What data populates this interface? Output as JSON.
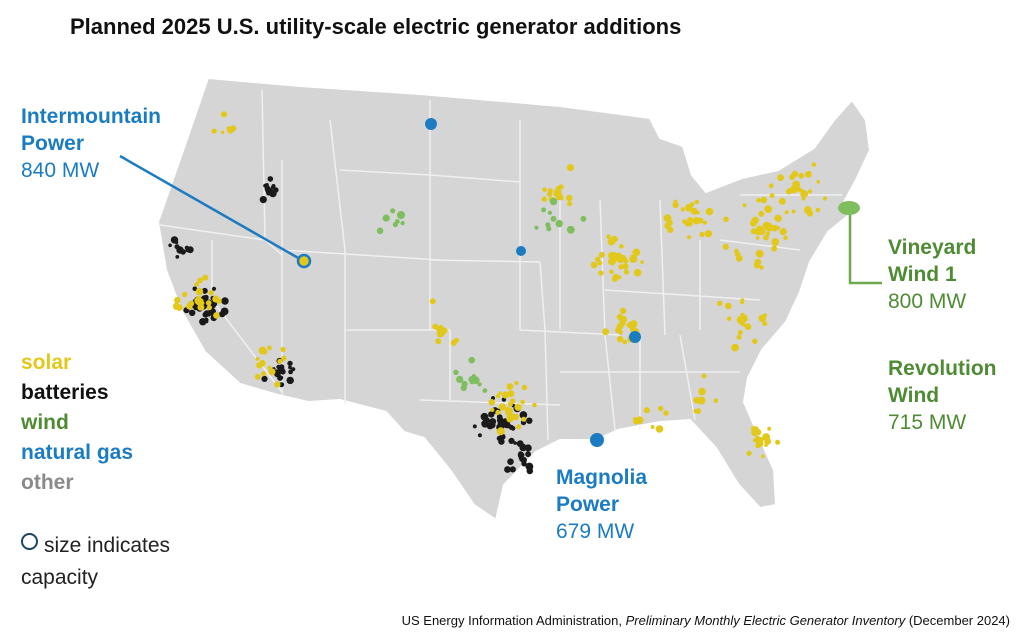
{
  "title": "Planned 2025 U.S. utility-scale electric generator additions",
  "colors": {
    "solar": "#e3c81c",
    "batteries": "#1a1a1a",
    "wind": "#7ebe5e",
    "natural_gas": "#1c7cc1",
    "other": "#8a8a8a",
    "land": "#d5d5d5",
    "borders": "#f2f2f2"
  },
  "legend": {
    "solar": "solar",
    "batteries": "batteries",
    "wind": "wind",
    "natural_gas": "natural gas",
    "other": "other",
    "size_note_line1": "size indicates",
    "size_note_line2": "capacity"
  },
  "callouts": {
    "intermountain": {
      "name_line1": "Intermountain",
      "name_line2": "Power",
      "capacity": "840 MW"
    },
    "vineyard": {
      "name_line1": "Vineyard",
      "name_line2": "Wind 1",
      "capacity": "800 MW"
    },
    "revolution": {
      "name_line1": "Revolution",
      "name_line2": "Wind",
      "capacity": "715 MW"
    },
    "magnolia": {
      "name_line1": "Magnolia",
      "name_line2": "Power",
      "capacity": "679 MW"
    }
  },
  "source": {
    "prefix": "US Energy Information Administration, ",
    "title": "Preliminary Monthly Electric Generator Inventory",
    "suffix": " (December 2024)"
  }
}
